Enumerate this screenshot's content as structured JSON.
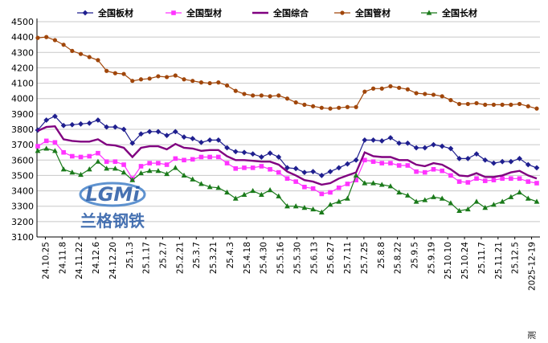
{
  "chart_data": {
    "type": "line",
    "ylim": [
      3100,
      4500
    ],
    "yticks": [
      3100,
      3200,
      3300,
      3400,
      3500,
      3600,
      3700,
      3800,
      3900,
      4000,
      4100,
      4200,
      4300,
      4400,
      4500
    ],
    "x_tick_labels": [
      "24.10.25",
      "24.11.8",
      "24.11.22",
      "24.12.6",
      "24.12.20",
      "25.1.3",
      "25.1.17",
      "25.2.7",
      "25.2.21",
      "25.3.7",
      "25.3.21",
      "25.4.3",
      "25.4.18",
      "25.4.30",
      "25.5.16",
      "25.5.30",
      "25.6.13",
      "25.6.27",
      "25.7.11",
      "25.7.25",
      "25.8.8",
      "25.8.22",
      "25.9.5",
      "25.9.19",
      "25.10.10",
      "25.10.24",
      "25.11.7",
      "25.11.21",
      "25.12.5",
      "2025-12-19"
    ],
    "last_label_prefix": "预测",
    "grid": "horizontal",
    "legend_position": "top",
    "series": [
      {
        "name": "全国板材",
        "color": "#1f1f8f",
        "marker": "diamond",
        "values": [
          3795,
          3860,
          3885,
          3825,
          3830,
          3835,
          3840,
          3860,
          3815,
          3815,
          3800,
          3710,
          3770,
          3785,
          3785,
          3760,
          3785,
          3750,
          3740,
          3715,
          3730,
          3730,
          3680,
          3655,
          3650,
          3640,
          3620,
          3645,
          3620,
          3550,
          3545,
          3520,
          3525,
          3500,
          3525,
          3550,
          3575,
          3600,
          3730,
          3730,
          3725,
          3745,
          3710,
          3710,
          3680,
          3680,
          3700,
          3690,
          3675,
          3610,
          3610,
          3640,
          3600,
          3580,
          3590,
          3590,
          3610,
          3570,
          3550
        ]
      },
      {
        "name": "全国型材",
        "color": "#ff33ff",
        "marker": "square",
        "values": [
          3690,
          3725,
          3715,
          3650,
          3625,
          3620,
          3625,
          3645,
          3590,
          3590,
          3570,
          3480,
          3560,
          3580,
          3580,
          3570,
          3610,
          3600,
          3605,
          3620,
          3620,
          3620,
          3580,
          3545,
          3550,
          3550,
          3560,
          3540,
          3520,
          3480,
          3460,
          3425,
          3415,
          3380,
          3390,
          3420,
          3445,
          3470,
          3600,
          3590,
          3580,
          3580,
          3565,
          3565,
          3525,
          3520,
          3540,
          3530,
          3500,
          3460,
          3455,
          3480,
          3465,
          3470,
          3480,
          3480,
          3480,
          3460,
          3450
        ]
      },
      {
        "name": "全国综合",
        "color": "#800080",
        "marker": "none",
        "values": [
          3790,
          3815,
          3820,
          3735,
          3725,
          3720,
          3720,
          3735,
          3700,
          3695,
          3680,
          3620,
          3680,
          3690,
          3690,
          3670,
          3705,
          3680,
          3675,
          3660,
          3665,
          3665,
          3625,
          3600,
          3600,
          3595,
          3590,
          3590,
          3570,
          3525,
          3500,
          3470,
          3460,
          3440,
          3450,
          3480,
          3500,
          3520,
          3650,
          3625,
          3620,
          3620,
          3600,
          3600,
          3570,
          3560,
          3580,
          3570,
          3540,
          3500,
          3495,
          3515,
          3490,
          3490,
          3500,
          3520,
          3530,
          3500,
          3480
        ]
      },
      {
        "name": "全国管材",
        "color": "#a0460a",
        "marker": "circle",
        "values": [
          4395,
          4400,
          4380,
          4350,
          4310,
          4290,
          4270,
          4250,
          4180,
          4165,
          4160,
          4115,
          4125,
          4130,
          4145,
          4140,
          4150,
          4125,
          4115,
          4105,
          4100,
          4105,
          4085,
          4050,
          4030,
          4020,
          4020,
          4015,
          4020,
          4000,
          3975,
          3960,
          3950,
          3940,
          3935,
          3940,
          3945,
          3945,
          4045,
          4065,
          4065,
          4080,
          4070,
          4060,
          4035,
          4030,
          4025,
          4015,
          3990,
          3965,
          3965,
          3970,
          3960,
          3960,
          3960,
          3960,
          3965,
          3950,
          3935
        ]
      },
      {
        "name": "全国长材",
        "color": "#1a7a1a",
        "marker": "triangle",
        "values": [
          3660,
          3675,
          3660,
          3540,
          3520,
          3505,
          3540,
          3590,
          3545,
          3545,
          3520,
          3470,
          3515,
          3530,
          3530,
          3510,
          3550,
          3500,
          3475,
          3445,
          3425,
          3420,
          3390,
          3350,
          3375,
          3400,
          3375,
          3405,
          3365,
          3300,
          3300,
          3290,
          3280,
          3260,
          3310,
          3330,
          3350,
          3500,
          3450,
          3450,
          3440,
          3430,
          3390,
          3370,
          3330,
          3340,
          3360,
          3350,
          3320,
          3270,
          3280,
          3330,
          3290,
          3310,
          3330,
          3360,
          3390,
          3350,
          3330
        ]
      }
    ]
  },
  "watermark": {
    "logo_text": "LGMi",
    "company_text": "兰格钢铁"
  }
}
